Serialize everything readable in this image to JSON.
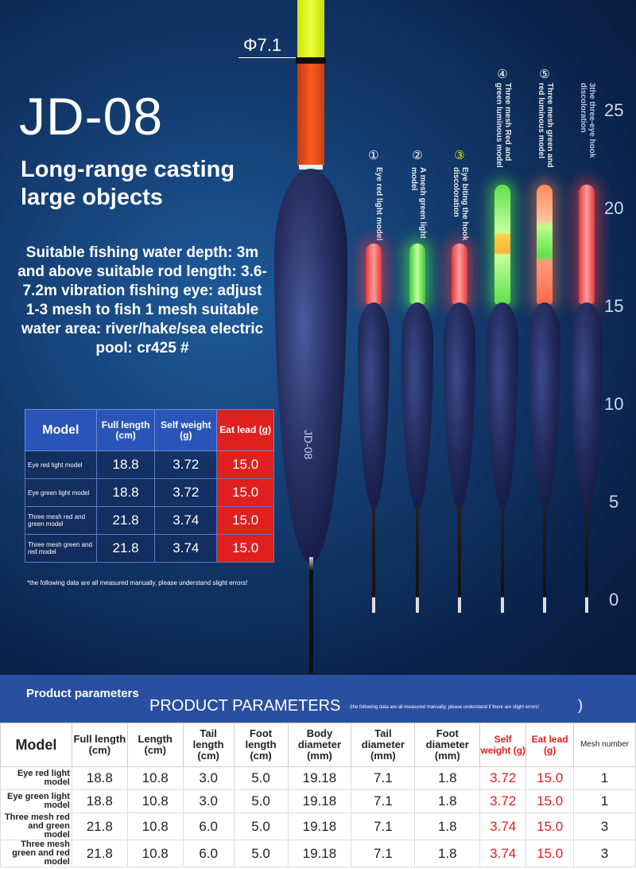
{
  "hero": {
    "title": "JD-08",
    "subtitle": "Long-range casting large objects",
    "description": "Suitable fishing water depth: 3m and above suitable rod length: 3.6- 7.2m vibration fishing eye: adjust 1-3 mesh to fish 1 mesh suitable water area: river/hake/sea electric pool: cr425 #",
    "diameter_label": "Φ7.1",
    "float_label": "JD-08"
  },
  "floats": [
    {
      "num": "①",
      "label": "Eye red light model"
    },
    {
      "num": "②",
      "label": "A mesh green light model"
    },
    {
      "num": "③",
      "label": "Eye biting the hook discoloration"
    },
    {
      "num": "④",
      "label": "Three mesh Red and green luminous model"
    },
    {
      "num": "⑤",
      "label": "Three mesh green and red luminous model"
    },
    {
      "num": "",
      "label": "3the three-eye hook discoloration"
    }
  ],
  "ruler": [
    "25",
    "20",
    "15",
    "10",
    "5",
    "0"
  ],
  "spec_table": {
    "headers": [
      "Model",
      "Full length (cm)",
      "Self weight (g)",
      "Eat lead (g)"
    ],
    "rows": [
      {
        "model": "Eye red light model",
        "full": "18.8",
        "self": "3.72",
        "lead": "15.0"
      },
      {
        "model": "Eye green light model",
        "full": "18.8",
        "self": "3.72",
        "lead": "15.0"
      },
      {
        "model": "Three mesh red and green model",
        "full": "21.8",
        "self": "3.74",
        "lead": "15.0"
      },
      {
        "model": "Three mesh green and red model",
        "full": "21.8",
        "self": "3.74",
        "lead": "15.0"
      }
    ],
    "note": "*the following data are all measured manually, please understand slight errors!"
  },
  "band": {
    "title": "Product parameters",
    "big": "PRODUCT PARAMETERS",
    "note": "(the following data are all measured manually, please understand if there are slight errors!",
    "paren": ")"
  },
  "params": {
    "headers": [
      "Model",
      "Full length (cm)",
      "Length (cm)",
      "Tail length (cm)",
      "Foot length (cm)",
      "Body diameter (mm)",
      "Tail diameter (mm)",
      "Foot diameter (mm)",
      "Self weight (g)",
      "Eat lead (g)",
      "Mesh number"
    ],
    "rows": [
      [
        "Eye red light model",
        "18.8",
        "10.8",
        "3.0",
        "5.0",
        "19.18",
        "7.1",
        "1.8",
        "3.72",
        "15.0",
        "1"
      ],
      [
        "Eye green light model",
        "18.8",
        "10.8",
        "3.0",
        "5.0",
        "19.18",
        "7.1",
        "1.8",
        "3.72",
        "15.0",
        "1"
      ],
      [
        "Three mesh red and green model",
        "21.8",
        "10.8",
        "6.0",
        "5.0",
        "19.18",
        "7.1",
        "1.8",
        "3.74",
        "15.0",
        "3"
      ],
      [
        "Three mesh green and red model",
        "21.8",
        "10.8",
        "6.0",
        "5.0",
        "19.18",
        "7.1",
        "1.8",
        "3.74",
        "15.0",
        "3"
      ]
    ]
  }
}
